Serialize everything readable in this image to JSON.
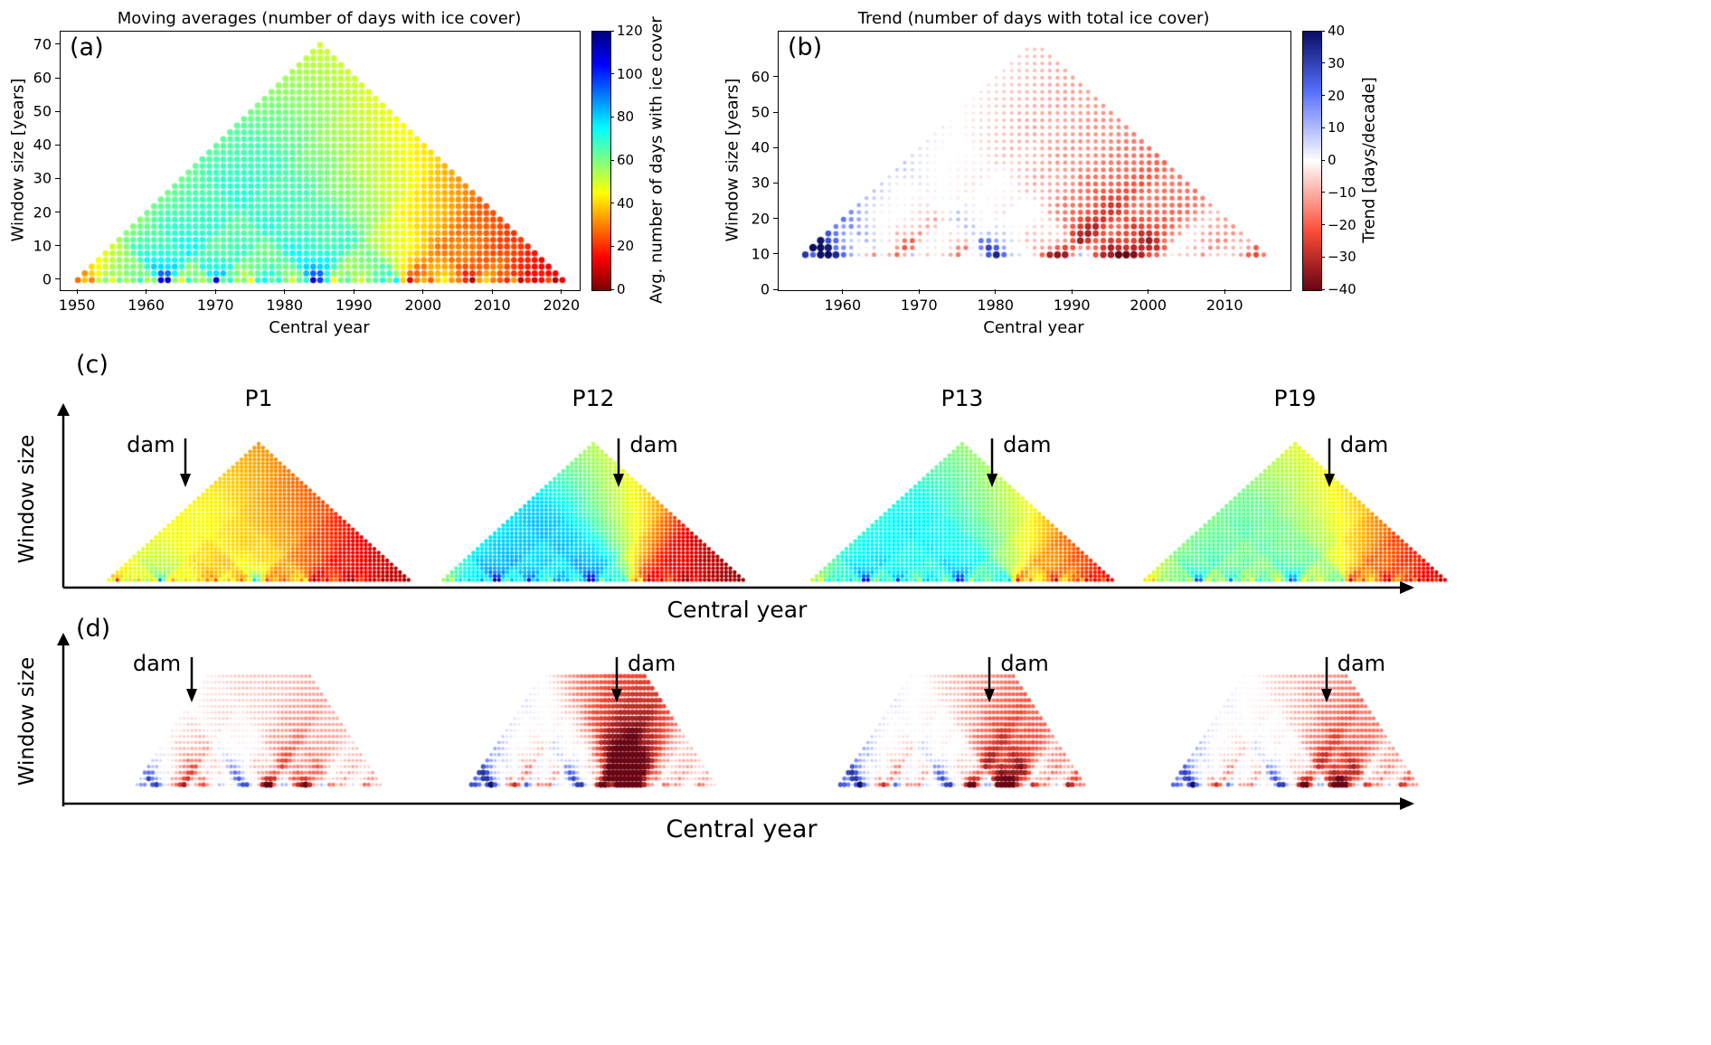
{
  "panels": {
    "a_label": "(a)",
    "b_label": "(b)",
    "c_label": "(c)",
    "d_label": "(d)"
  },
  "series": {
    "main": [
      28,
      38,
      30,
      52,
      58,
      48,
      62,
      55,
      60,
      68,
      55,
      60,
      105,
      112,
      58,
      50,
      68,
      60,
      55,
      64,
      108,
      64,
      70,
      55,
      60,
      46,
      70,
      74,
      64,
      70,
      60,
      50,
      64,
      70,
      112,
      98,
      70,
      46,
      60,
      64,
      55,
      50,
      60,
      64,
      70,
      60,
      74,
      40,
      12,
      30,
      36,
      26,
      40,
      44,
      34,
      30,
      20,
      6,
      34,
      40,
      30,
      26,
      20,
      34,
      8,
      20,
      12,
      16,
      24,
      6,
      14
    ],
    "P1": [
      45,
      50,
      20,
      48,
      52,
      42,
      55,
      38,
      50,
      55,
      42,
      48,
      88,
      60,
      45,
      35,
      52,
      48,
      40,
      50,
      45,
      38,
      42,
      30,
      40,
      25,
      45,
      50,
      38,
      44,
      36,
      28,
      40,
      44,
      78,
      60,
      42,
      24,
      34,
      38,
      30,
      26,
      34,
      38,
      42,
      32,
      45,
      18,
      5,
      15,
      22,
      12,
      25,
      28,
      18,
      15,
      8,
      2,
      18,
      22,
      15,
      12,
      8,
      18,
      3,
      10,
      4,
      8,
      12,
      2,
      6
    ],
    "P12": [
      55,
      65,
      50,
      70,
      78,
      68,
      80,
      72,
      76,
      85,
      70,
      75,
      115,
      110,
      72,
      65,
      82,
      75,
      70,
      80,
      108,
      78,
      85,
      70,
      75,
      60,
      85,
      88,
      78,
      84,
      74,
      65,
      78,
      84,
      115,
      105,
      84,
      60,
      74,
      78,
      70,
      65,
      75,
      60,
      40,
      30,
      45,
      20,
      5,
      15,
      20,
      10,
      22,
      25,
      15,
      12,
      5,
      1,
      15,
      18,
      10,
      8,
      4,
      12,
      1,
      6,
      2,
      4,
      8,
      1,
      3
    ],
    "P13": [
      50,
      60,
      45,
      65,
      72,
      62,
      75,
      66,
      70,
      78,
      65,
      70,
      108,
      104,
      66,
      60,
      76,
      70,
      65,
      74,
      100,
      72,
      78,
      65,
      70,
      55,
      78,
      82,
      72,
      78,
      68,
      60,
      72,
      78,
      108,
      98,
      78,
      55,
      68,
      72,
      64,
      60,
      70,
      72,
      76,
      66,
      80,
      45,
      15,
      35,
      42,
      30,
      45,
      48,
      38,
      32,
      22,
      8,
      38,
      42,
      32,
      28,
      22,
      36,
      10,
      22,
      14,
      18,
      26,
      8,
      16
    ],
    "P19": [
      42,
      50,
      38,
      55,
      60,
      52,
      64,
      56,
      60,
      66,
      55,
      58,
      95,
      92,
      56,
      50,
      64,
      58,
      54,
      62,
      90,
      60,
      66,
      54,
      60,
      46,
      66,
      70,
      60,
      66,
      56,
      48,
      60,
      66,
      95,
      88,
      66,
      46,
      56,
      60,
      52,
      48,
      58,
      60,
      64,
      55,
      68,
      38,
      10,
      28,
      35,
      24,
      38,
      42,
      30,
      26,
      16,
      5,
      30,
      35,
      26,
      22,
      16,
      30,
      6,
      18,
      10,
      14,
      20,
      5,
      12
    ]
  },
  "chart_data": [
    {
      "id": "a",
      "type": "scatter",
      "subtype": "moving-average-triangle",
      "title": "Moving averages (number of days with ice cover)",
      "xlabel": "Central year",
      "ylabel": "Window size [years]",
      "xticks": [
        1950,
        1960,
        1970,
        1980,
        1990,
        2000,
        2010,
        2020
      ],
      "yticks": [
        0,
        10,
        20,
        30,
        40,
        50,
        60,
        70
      ],
      "xlim": [
        1947.5,
        2022.5
      ],
      "ylim": [
        -3,
        74
      ],
      "year_start": 1950,
      "year_end": 2020,
      "series_key": "main",
      "window_min": 0,
      "window_max": 70,
      "window_step": 2,
      "stat": "moving_average",
      "colormap": "jet_reversed",
      "vmin": 0,
      "vmax": 120,
      "colorbar_label": "Avg. number of days with ice cover",
      "colorbar_ticks": [
        0,
        20,
        40,
        60,
        80,
        100,
        120
      ]
    },
    {
      "id": "b",
      "type": "scatter",
      "subtype": "trend-triangle",
      "title": "Trend (number of days with total ice cover)",
      "xlabel": "Central year",
      "ylabel": "Window size [years]",
      "xticks": [
        1960,
        1970,
        1980,
        1990,
        2000,
        2010
      ],
      "yticks": [
        0,
        10,
        20,
        30,
        40,
        50,
        60
      ],
      "xlim": [
        1951.5,
        2018.5
      ],
      "ylim": [
        0,
        73
      ],
      "year_start": 1950,
      "year_end": 2020,
      "series_key": "main",
      "window_min": 10,
      "window_max": 68,
      "window_step": 2,
      "stat": "linear_trend_days_per_decade",
      "marker_size": "scales_with_abs_trend",
      "colormap": "red_white_blue",
      "vmin": -40,
      "vmax": 40,
      "colorbar_label": "Trend [days/decade]",
      "colorbar_ticks": [
        40,
        30,
        20,
        10,
        0,
        -10,
        -20,
        -30,
        -40
      ]
    },
    {
      "id": "c",
      "type": "scatter",
      "subtype": "moving-average-triangle-grid",
      "xlabel": "Central year",
      "ylabel": "Window size",
      "dam_label": "dam",
      "stat": "moving_average",
      "colormap": "jet_reversed",
      "vmin": 0,
      "vmax": 120,
      "window_min": 0,
      "window_max": 70,
      "window_step": 2,
      "year_start": 1950,
      "year_end": 2020,
      "sites": [
        {
          "name": "P1",
          "series_key": "P1",
          "dam_year": 1968,
          "dam_label_side": "left"
        },
        {
          "name": "P12",
          "series_key": "P12",
          "dam_year": 1991,
          "dam_label_side": "right"
        },
        {
          "name": "P13",
          "series_key": "P13",
          "dam_year": 1992,
          "dam_label_side": "right"
        },
        {
          "name": "P19",
          "series_key": "P19",
          "dam_year": 1993,
          "dam_label_side": "right"
        }
      ]
    },
    {
      "id": "d",
      "type": "scatter",
      "subtype": "trend-triangle-grid",
      "xlabel": "Central year",
      "ylabel": "Window size",
      "dam_label": "dam",
      "stat": "linear_trend_days_per_decade",
      "colormap": "red_white_blue",
      "vmin": -40,
      "vmax": 40,
      "window_min": 8,
      "window_max": 44,
      "window_step": 2,
      "year_start": 1950,
      "year_end": 2020,
      "sites": [
        {
          "name": "P1",
          "series_key": "P1",
          "dam_year": 1968,
          "dam_label_side": "left"
        },
        {
          "name": "P12",
          "series_key": "P12",
          "dam_year": 1991,
          "dam_label_side": "right"
        },
        {
          "name": "P13",
          "series_key": "P13",
          "dam_year": 1992,
          "dam_label_side": "right"
        },
        {
          "name": "P19",
          "series_key": "P19",
          "dam_year": 1993,
          "dam_label_side": "right"
        }
      ]
    }
  ]
}
